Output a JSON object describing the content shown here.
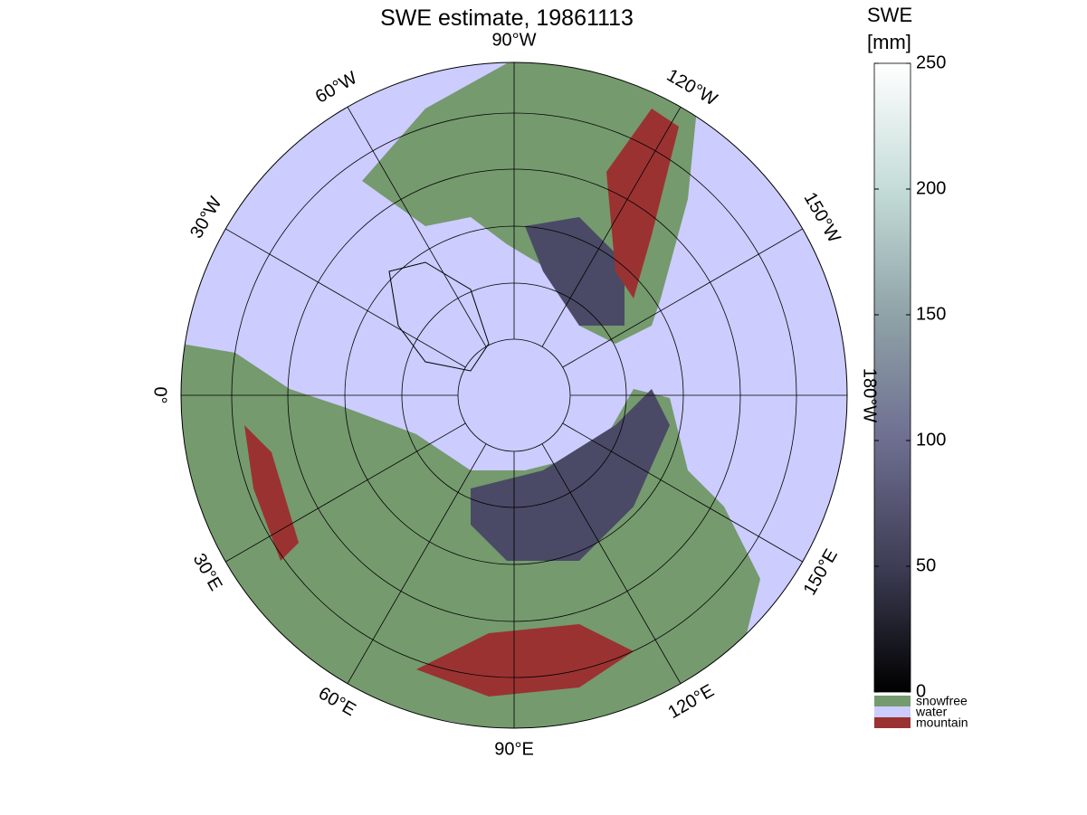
{
  "map": {
    "title": "SWE estimate, 19861113",
    "meridians": [
      {
        "value": -90,
        "label": "90°W"
      },
      {
        "value": -60,
        "label": "60°W"
      },
      {
        "value": -30,
        "label": "30°W"
      },
      {
        "value": 0,
        "label": "0°"
      },
      {
        "value": 30,
        "label": "30°E"
      },
      {
        "value": 60,
        "label": "60°E"
      },
      {
        "value": 90,
        "label": "90°E"
      },
      {
        "value": 120,
        "label": "120°E"
      },
      {
        "value": 150,
        "label": "150°E"
      },
      {
        "value": 180,
        "label": "180°W"
      },
      {
        "value": -150,
        "label": "150°W"
      },
      {
        "value": -120,
        "label": "120°W"
      }
    ],
    "colorbar": {
      "label_line1": "SWE",
      "label_line2": "[mm]",
      "lim": [
        0,
        250
      ],
      "ticks": [
        0,
        50,
        100,
        150,
        200,
        250
      ],
      "colors": [
        "#000000",
        "#3d3d55",
        "#6e6e90",
        "#8fa3a8",
        "#c4dcd8",
        "#ffffff"
      ]
    },
    "legend": [
      {
        "name": "snowfree",
        "color": "#759a6e"
      },
      {
        "name": "water",
        "color": "#ccccff"
      },
      {
        "name": "mountain",
        "color": "#9b3232"
      }
    ]
  }
}
